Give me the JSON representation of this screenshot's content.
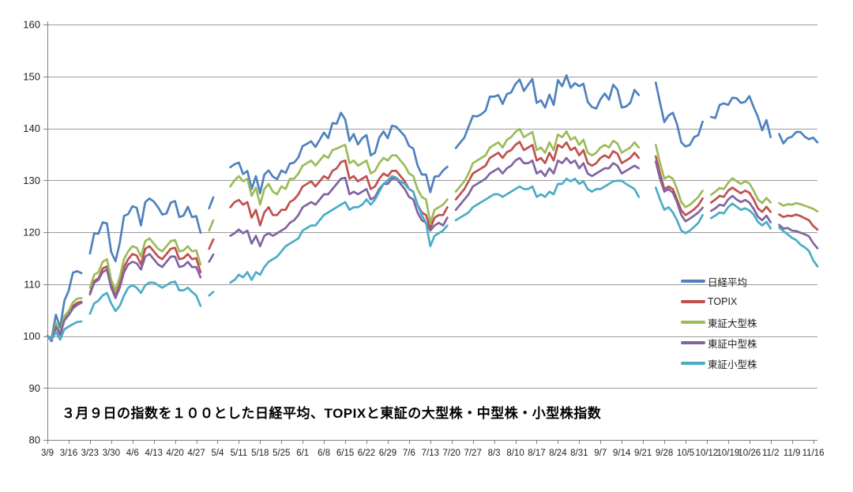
{
  "title": "３月９日の指数を１００とした日経平均、TOPIXと東証の大型株・中型株・小型株指数",
  "y_axis": {
    "min": 80,
    "max": 160,
    "step": 10,
    "tick_labels": [
      "80",
      "90",
      "100",
      "110",
      "120",
      "130",
      "140",
      "150",
      "160"
    ]
  },
  "x_axis": {
    "tick_labels": [
      "3/9",
      "3/16",
      "3/23",
      "3/30",
      "4/6",
      "4/13",
      "4/20",
      "4/27",
      "5/4",
      "5/11",
      "5/18",
      "5/25",
      "6/1",
      "6/8",
      "6/15",
      "6/22",
      "6/29",
      "7/6",
      "7/13",
      "7/20",
      "7/27",
      "8/3",
      "8/10",
      "8/17",
      "8/24",
      "8/31",
      "9/7",
      "9/14",
      "9/21",
      "9/28",
      "10/5",
      "10/12",
      "10/19",
      "10/26",
      "11/2",
      "11/9",
      "11/16"
    ]
  },
  "colors": {
    "grid": "#9b9b9b",
    "axis": "#808080",
    "text": "#1f1f1f",
    "background": "#ffffff"
  },
  "chart_data": {
    "type": "line",
    "title": "３月９日の指数を１００とした日経平均、TOPIXと東証の大型株・中型株・小型株指数",
    "xlabel": "",
    "ylabel": "",
    "ylim": [
      80,
      160
    ],
    "grid": "horizontal",
    "legend_position": "right-middle",
    "x_unit": "daily trading days 3/9 - 11/17, nulls = market holidays (no line segment)",
    "x_tick_every": 5,
    "x_tick_labels": [
      "3/9",
      "3/16",
      "3/23",
      "3/30",
      "4/6",
      "4/13",
      "4/20",
      "4/27",
      "5/4",
      "5/11",
      "5/18",
      "5/25",
      "6/1",
      "6/8",
      "6/15",
      "6/22",
      "6/29",
      "7/6",
      "7/13",
      "7/20",
      "7/27",
      "8/3",
      "8/10",
      "8/17",
      "8/24",
      "8/31",
      "9/7",
      "9/14",
      "9/21",
      "9/28",
      "10/5",
      "10/12",
      "10/19",
      "10/26",
      "11/2",
      "11/9",
      "11/16"
    ],
    "series": [
      {
        "key": "nikkei",
        "name": "日経平均",
        "color": "#4F81BD",
        "values": [
          100,
          99.6,
          104.1,
          101.6,
          106.8,
          108.7,
          112.2,
          112.5,
          112.1,
          null,
          115.9,
          119.8,
          119.7,
          121.9,
          121.7,
          116.2,
          114.4,
          117.9,
          123.1,
          123.5,
          125,
          124.7,
          121.3,
          125.8,
          126.5,
          125.9,
          124.8,
          123.4,
          123.6,
          125.7,
          126,
          122.9,
          123.2,
          124.9,
          122.9,
          123.1,
          119.9,
          null,
          124.6,
          126.7,
          null,
          null,
          null,
          132.5,
          133.1,
          133.4,
          131.2,
          131.8,
          128.3,
          130.8,
          127.5,
          131.1,
          131.9,
          130.7,
          130.2,
          131.9,
          131.4,
          133.2,
          133.4,
          134.4,
          136.6,
          137,
          137.5,
          136.4,
          137.8,
          139.2,
          138.1,
          141,
          140.9,
          143,
          141.7,
          137.6,
          138.9,
          136.9,
          138.1,
          138.7,
          134.8,
          135.3,
          138.2,
          139.4,
          138.1,
          140.5,
          140.3,
          139.4,
          138.5,
          136.6,
          136.1,
          132.9,
          131.1,
          131.1,
          127.7,
          130.7,
          130.8,
          131.9,
          132.6,
          null,
          136.2,
          137.2,
          138.2,
          140.3,
          142.4,
          142.3,
          142.7,
          143.4,
          146.1,
          146.1,
          146.4,
          144.7,
          146.6,
          146.9,
          148.5,
          149.4,
          147.2,
          148.4,
          149.5,
          144.9,
          145.4,
          144,
          146.5,
          144.5,
          149.3,
          148.1,
          150.2,
          147.8,
          148.7,
          148.1,
          148.6,
          145.1,
          144.1,
          143.8,
          145.6,
          146.7,
          145.5,
          148.4,
          147.4,
          144,
          144.2,
          144.9,
          147.4,
          146.4,
          null,
          null,
          null,
          148.8,
          144.9,
          141.2,
          142.5,
          143,
          140.8,
          137.3,
          136.5,
          136.8,
          138.3,
          138.7,
          141.3,
          null,
          142.2,
          142,
          144.5,
          144.8,
          144.5,
          145.9,
          145.8,
          144.9,
          145.1,
          146.2,
          144.1,
          142.2,
          139.6,
          141.6,
          138.3,
          null,
          138.9,
          137.1,
          138.1,
          138.4,
          139.3,
          139.3,
          138.4,
          137.9,
          138.2,
          137.3
        ]
      },
      {
        "key": "topix",
        "name": "TOPIX",
        "color": "#C0504D",
        "values": [
          100,
          99.3,
          102.2,
          100.2,
          103.3,
          104.2,
          105.8,
          106.4,
          106.6,
          null,
          108.3,
          110.6,
          111.1,
          113,
          113.4,
          109.8,
          107.8,
          110,
          113.3,
          114.8,
          115.8,
          115.5,
          113.8,
          116.8,
          117.3,
          116.3,
          115.3,
          114.8,
          115.8,
          116.8,
          117,
          114.8,
          115,
          115.8,
          114.8,
          115,
          112.3,
          null,
          116.8,
          118.6,
          null,
          null,
          null,
          124.8,
          125.8,
          126.2,
          125.3,
          125.8,
          122.8,
          124.3,
          121.3,
          123.8,
          124.8,
          123.3,
          123.3,
          124.3,
          124.3,
          125.8,
          126.3,
          127.3,
          128.8,
          129.3,
          129.8,
          128.8,
          129.8,
          130.8,
          130.3,
          131.8,
          132.3,
          133.5,
          133.8,
          130.3,
          130.8,
          129.8,
          130.3,
          130.8,
          128.3,
          128.8,
          130.3,
          131.3,
          130.8,
          131.8,
          131.8,
          130.8,
          129.8,
          128.3,
          127.8,
          125.3,
          123.8,
          123.3,
          120.7,
          122.8,
          123.3,
          123.3,
          124.8,
          null,
          126.3,
          127.3,
          128.3,
          129.8,
          131.3,
          131.8,
          132.3,
          132.8,
          134.3,
          134.8,
          135.3,
          134.3,
          135.4,
          135.8,
          136.8,
          137.4,
          135.8,
          136.3,
          136.8,
          133.8,
          134.3,
          133.3,
          135.3,
          133.8,
          136.8,
          136.3,
          137.3,
          135.8,
          136.3,
          134.8,
          135.8,
          133.3,
          132.8,
          133.3,
          134.3,
          134.8,
          134.3,
          135.6,
          135.1,
          133.3,
          133.8,
          134.3,
          135.3,
          134.3,
          null,
          null,
          null,
          134.6,
          131.3,
          128.3,
          128.8,
          128.3,
          126.3,
          124.2,
          123.3,
          123.8,
          124.4,
          125.2,
          126.5,
          null,
          125.7,
          126.3,
          127,
          126.8,
          128,
          128.6,
          128,
          127.5,
          128,
          127.6,
          126.3,
          124.6,
          123.9,
          124.9,
          123.9,
          null,
          123.4,
          122.9,
          123.2,
          123.1,
          123.4,
          123.1,
          122.7,
          122.3,
          121.2,
          120.5
        ]
      },
      {
        "key": "large-cap",
        "name": "東証大型株",
        "color": "#9BBB59",
        "values": [
          100,
          99.2,
          102.5,
          100.5,
          103.8,
          104.8,
          106.5,
          107.2,
          107.3,
          null,
          109.3,
          111.8,
          112.3,
          114.3,
          114.8,
          110.8,
          108.8,
          111.3,
          114.8,
          116.3,
          117.3,
          117,
          115.3,
          118.3,
          118.8,
          117.8,
          116.8,
          116.3,
          117.3,
          118.3,
          118.5,
          116.3,
          116.5,
          117.3,
          116.3,
          116.5,
          113.8,
          null,
          120.3,
          122.3,
          null,
          null,
          null,
          128.8,
          130,
          130.8,
          129.8,
          130.3,
          127,
          128.6,
          125.3,
          128.3,
          129.3,
          127.8,
          127.3,
          128.8,
          128.3,
          130.3,
          130.3,
          131.3,
          132.8,
          133.3,
          133.8,
          132.8,
          133.8,
          134.8,
          134.3,
          135.8,
          136.1,
          136.5,
          136.8,
          133.3,
          133.8,
          132.8,
          133.3,
          133.8,
          131.3,
          131.8,
          133.3,
          134.3,
          133.8,
          134.8,
          134.8,
          133.8,
          132.8,
          131.3,
          130.8,
          128.3,
          126.8,
          126.3,
          121.8,
          124.3,
          124.8,
          125.3,
          126.3,
          null,
          127.8,
          128.8,
          129.8,
          131.3,
          133.3,
          133.8,
          134.3,
          134.8,
          136.3,
          136.8,
          137.3,
          136.3,
          137.8,
          138.3,
          139.3,
          139.9,
          138.3,
          138.8,
          139.3,
          135.8,
          136.3,
          135.3,
          137.3,
          135.8,
          138.8,
          138.3,
          139.4,
          137.8,
          138.3,
          136.8,
          137.8,
          135.3,
          134.8,
          135.3,
          136.3,
          136.8,
          136.3,
          137.6,
          137.1,
          135.3,
          135.8,
          136.3,
          137.3,
          136.3,
          null,
          null,
          null,
          136.8,
          133.3,
          130.3,
          130.8,
          130.3,
          128.3,
          125.8,
          124.8,
          125.3,
          126,
          126.8,
          128,
          null,
          127.2,
          127.8,
          128.5,
          128.3,
          129.5,
          130.4,
          129.8,
          129.3,
          129.8,
          129.4,
          128,
          126.3,
          125.6,
          126.6,
          125.7,
          null,
          125.6,
          125.1,
          125.4,
          125.3,
          125.6,
          125.4,
          125.1,
          124.8,
          124.5,
          124
        ]
      },
      {
        "key": "mid-cap",
        "name": "東証中型株",
        "color": "#8064A2",
        "values": [
          100,
          99,
          101.8,
          100.3,
          103,
          104,
          105.3,
          106,
          106.4,
          null,
          108,
          110.3,
          110.8,
          112.3,
          112.8,
          109.3,
          107.3,
          109.3,
          112.3,
          113.8,
          114.3,
          114,
          112.8,
          115.3,
          115.8,
          114.8,
          113.8,
          113.3,
          114.3,
          115.3,
          115.3,
          113.3,
          113.5,
          114.3,
          113.3,
          113.3,
          111.3,
          null,
          114.3,
          115.7,
          null,
          null,
          null,
          119.3,
          119.8,
          120.5,
          119.8,
          120.3,
          117.8,
          119.3,
          117.3,
          119.3,
          119.8,
          119.3,
          119.8,
          120.3,
          120.8,
          121.8,
          122.3,
          123.3,
          124.8,
          125.3,
          125.8,
          125.3,
          126.3,
          127.3,
          127.3,
          128.3,
          129.3,
          130.3,
          130.5,
          127.3,
          127.8,
          127.3,
          127.8,
          128.3,
          126.3,
          126.8,
          128.3,
          129.3,
          129.3,
          130.3,
          130.3,
          129.3,
          128.3,
          126.8,
          126.3,
          123.8,
          122.3,
          121.8,
          120.3,
          121.3,
          121.8,
          121.3,
          122.8,
          null,
          124.3,
          125.3,
          126.3,
          127.3,
          128.8,
          129.3,
          129.8,
          130.3,
          131.3,
          131.8,
          132.3,
          131.3,
          132.3,
          132.8,
          133.8,
          134.3,
          133.3,
          133.3,
          133.8,
          131.3,
          131.8,
          130.8,
          132.3,
          131.3,
          133.8,
          133.3,
          134.3,
          133.3,
          133.8,
          132.3,
          133.3,
          131.3,
          130.8,
          131.3,
          131.8,
          132.3,
          132.3,
          133.3,
          132.8,
          131.3,
          131.8,
          132.3,
          132.8,
          132.3,
          null,
          null,
          null,
          133.6,
          130.3,
          127.8,
          128.3,
          127.6,
          125.8,
          123.3,
          122.1,
          122.6,
          123.2,
          123.8,
          124.7,
          null,
          124.1,
          124.6,
          125.3,
          125.1,
          126.3,
          127,
          126.3,
          125.8,
          126.2,
          125.7,
          124.5,
          123,
          122.3,
          123.2,
          121.9,
          null,
          121.4,
          120.7,
          120.8,
          120.3,
          120.2,
          119.9,
          119.6,
          119.2,
          117.9,
          116.9
        ]
      },
      {
        "key": "small-cap",
        "name": "東証小型株",
        "color": "#4BACC6",
        "values": [
          100,
          99.3,
          100.8,
          99.3,
          101.3,
          101.8,
          102.3,
          102.7,
          102.8,
          null,
          104.3,
          106.3,
          106.8,
          107.8,
          108.3,
          106.3,
          104.8,
          105.8,
          107.8,
          109.3,
          109.8,
          109.3,
          108.3,
          109.8,
          110.3,
          110.3,
          109.8,
          109.3,
          109.8,
          110.3,
          110.5,
          108.8,
          108.8,
          109.3,
          108.5,
          107.8,
          105.8,
          null,
          107.8,
          108.5,
          null,
          null,
          null,
          110.3,
          110.8,
          111.8,
          111.3,
          112.3,
          110.8,
          112.3,
          111.8,
          113.3,
          114.3,
          114.8,
          115.3,
          116.3,
          117.3,
          117.8,
          118.3,
          118.8,
          120.3,
          120.8,
          121.3,
          121.3,
          122.3,
          123.3,
          123.8,
          124.3,
          124.8,
          125.3,
          125.8,
          124.3,
          124.8,
          124.8,
          125.3,
          126.3,
          125.3,
          126.3,
          127.8,
          129.3,
          130,
          130.8,
          130.5,
          129.8,
          129.3,
          128.3,
          127.8,
          125.3,
          123.3,
          121.8,
          117.3,
          119.3,
          119.8,
          120.3,
          121.3,
          null,
          122.3,
          122.8,
          123.3,
          123.8,
          124.8,
          125.3,
          125.8,
          126.3,
          126.8,
          127.3,
          127.3,
          126.8,
          127.3,
          127.8,
          128.3,
          128.8,
          128.3,
          128.3,
          128.8,
          126.8,
          127.3,
          126.8,
          127.8,
          127.3,
          129.3,
          129.3,
          130.3,
          129.8,
          130.3,
          129.3,
          129.8,
          128.3,
          127.8,
          128.3,
          128.3,
          128.8,
          129.3,
          129.8,
          129.9,
          129.9,
          129.3,
          128.8,
          128.3,
          126.8,
          null,
          null,
          null,
          128.6,
          126.3,
          124.3,
          124.8,
          123.8,
          122.3,
          120.3,
          119.8,
          120.3,
          121,
          121.8,
          123.3,
          null,
          122.7,
          123.2,
          123.8,
          123.6,
          124.8,
          125.5,
          124.9,
          124.3,
          124.6,
          124.2,
          123.4,
          122,
          121.3,
          122,
          120.7,
          null,
          120.9,
          120.2,
          119.6,
          118.9,
          118.5,
          117.6,
          117.1,
          116.4,
          114.6,
          113.4
        ]
      }
    ]
  }
}
